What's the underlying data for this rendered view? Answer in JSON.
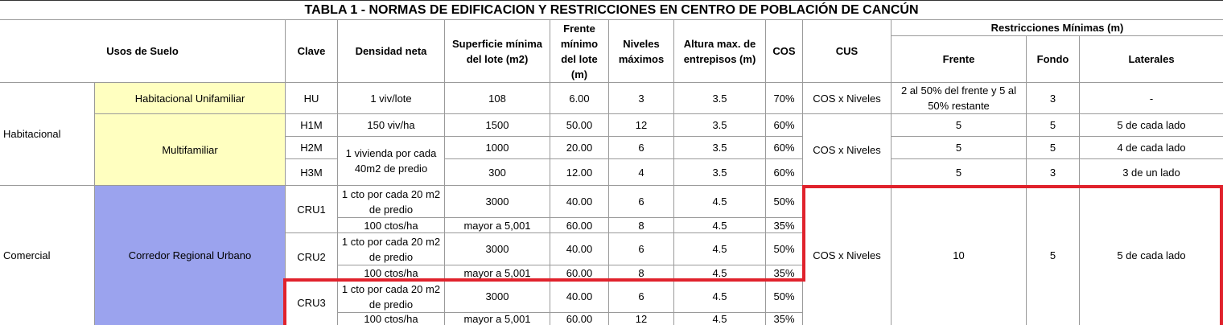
{
  "title": "TABLA 1 - NORMAS DE EDIFICACION Y RESTRICCIONES EN CENTRO DE POBLACIÓN DE CANCÚN",
  "headers": {
    "usos": "Usos de Suelo",
    "clave": "Clave",
    "densidad": "Densidad neta",
    "superficie": "Superficie mínima del lote (m2)",
    "frente_min": "Frente mínimo del lote (m)",
    "niveles": "Niveles máximos",
    "altura": "Altura max. de entrepisos (m)",
    "cos": "COS",
    "cus": "CUS",
    "restricciones": "Restricciones Mínimas (m)",
    "frente": "Frente",
    "fondo": "Fondo",
    "laterales": "Laterales"
  },
  "groups": {
    "habitacional": "Habitacional",
    "comercial": "Comercial"
  },
  "uses": {
    "hu": "Habitacional Unifamiliar",
    "multi": "Multifamiliar",
    "cru": "Corredor Regional Urbano"
  },
  "rows": {
    "hu": {
      "clave": "HU",
      "densidad": "1 viv/lote",
      "superficie": "108",
      "frente": "6.00",
      "niveles": "3",
      "altura": "3.5",
      "cos": "70%",
      "cus": "COS x Niveles",
      "r_frente": "2 al 50% del frente y 5 al 50% restante",
      "r_fondo": "3",
      "r_lat": "-"
    },
    "h1m": {
      "clave": "H1M",
      "densidad": "150 viv/ha",
      "superficie": "1500",
      "frente": "50.00",
      "niveles": "12",
      "altura": "3.5",
      "cos": "60%",
      "r_frente": "5",
      "r_fondo": "5",
      "r_lat": "5 de cada lado"
    },
    "h2m": {
      "clave": "H2M",
      "superficie": "1000",
      "frente": "20.00",
      "niveles": "6",
      "altura": "3.5",
      "cos": "60%",
      "r_frente": "5",
      "r_fondo": "5",
      "r_lat": "4 de cada lado"
    },
    "h3m": {
      "clave": "H3M",
      "superficie": "300",
      "frente": "12.00",
      "niveles": "4",
      "altura": "3.5",
      "cos": "60%",
      "r_frente": "5",
      "r_fondo": "3",
      "r_lat": "3 de un lado"
    },
    "multi_densidad": "1 vivienda por cada 40m2 de predio",
    "multi_cus": "COS x Niveles",
    "cru1": {
      "clave": "CRU1"
    },
    "cru2": {
      "clave": "CRU2"
    },
    "cru3": {
      "clave": "CRU3"
    },
    "cru_a": {
      "densidad": "1 cto por cada 20 m2 de predio",
      "superficie": "3000",
      "frente": "40.00",
      "niveles": "6",
      "altura": "4.5",
      "cos": "50%"
    },
    "cru_b": {
      "densidad": "100 ctos/ha",
      "superficie": "mayor a 5,001",
      "frente": "60.00",
      "niveles": "8",
      "altura": "4.5",
      "cos": "35%"
    },
    "cru3_b": {
      "densidad": "100 ctos/ha",
      "superficie": "mayor a 5,001",
      "frente": "60.00",
      "niveles": "12",
      "altura": "4.5",
      "cos": "35%"
    },
    "cru_cus": "COS x Niveles",
    "cru_r_frente": "10",
    "cru_r_fondo": "5",
    "cru_r_lat": "5 de cada lado"
  },
  "highlight_color": "#e0222c"
}
